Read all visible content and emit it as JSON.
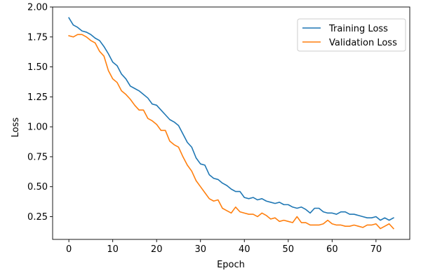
{
  "chart_data": {
    "type": "line",
    "xlabel": "Epoch",
    "ylabel": "Loss",
    "xlim": [
      -3.7,
      77.7
    ],
    "ylim": [
      0.06,
      2.0
    ],
    "xticks": [
      0,
      10,
      20,
      30,
      40,
      50,
      60,
      70
    ],
    "yticks": [
      0.25,
      0.5,
      0.75,
      1.0,
      1.25,
      1.5,
      1.75,
      2.0
    ],
    "xtick_labels": [
      "0",
      "10",
      "20",
      "30",
      "40",
      "50",
      "60",
      "70"
    ],
    "ytick_labels": [
      "0.25",
      "0.50",
      "0.75",
      "1.00",
      "1.25",
      "1.50",
      "1.75",
      "2.00"
    ],
    "grid": false,
    "legend": "top-right",
    "series": [
      {
        "name": "Training Loss",
        "color": "#1f77b4",
        "x": [
          0,
          1,
          2,
          3,
          4,
          5,
          6,
          7,
          8,
          9,
          10,
          11,
          12,
          13,
          14,
          15,
          16,
          17,
          18,
          19,
          20,
          21,
          22,
          23,
          24,
          25,
          26,
          27,
          28,
          29,
          30,
          31,
          32,
          33,
          34,
          35,
          36,
          37,
          38,
          39,
          40,
          41,
          42,
          43,
          44,
          45,
          46,
          47,
          48,
          49,
          50,
          51,
          52,
          53,
          54,
          55,
          56,
          57,
          58,
          59,
          60,
          61,
          62,
          63,
          64,
          65,
          66,
          67,
          68,
          69,
          70,
          71,
          72,
          73,
          74
        ],
        "values": [
          1.91,
          1.85,
          1.83,
          1.8,
          1.79,
          1.77,
          1.74,
          1.72,
          1.67,
          1.61,
          1.54,
          1.51,
          1.44,
          1.4,
          1.34,
          1.32,
          1.3,
          1.27,
          1.24,
          1.19,
          1.18,
          1.14,
          1.1,
          1.06,
          1.04,
          1.01,
          0.94,
          0.87,
          0.83,
          0.74,
          0.69,
          0.68,
          0.6,
          0.57,
          0.56,
          0.53,
          0.51,
          0.48,
          0.46,
          0.46,
          0.41,
          0.4,
          0.41,
          0.39,
          0.4,
          0.38,
          0.37,
          0.36,
          0.37,
          0.35,
          0.35,
          0.33,
          0.32,
          0.33,
          0.31,
          0.28,
          0.32,
          0.32,
          0.29,
          0.28,
          0.28,
          0.27,
          0.29,
          0.29,
          0.27,
          0.27,
          0.26,
          0.25,
          0.24,
          0.24,
          0.25,
          0.22,
          0.24,
          0.22,
          0.24
        ]
      },
      {
        "name": "Validation Loss",
        "color": "#ff7f0e",
        "x": [
          0,
          1,
          2,
          3,
          4,
          5,
          6,
          7,
          8,
          9,
          10,
          11,
          12,
          13,
          14,
          15,
          16,
          17,
          18,
          19,
          20,
          21,
          22,
          23,
          24,
          25,
          26,
          27,
          28,
          29,
          30,
          31,
          32,
          33,
          34,
          35,
          36,
          37,
          38,
          39,
          40,
          41,
          42,
          43,
          44,
          45,
          46,
          47,
          48,
          49,
          50,
          51,
          52,
          53,
          54,
          55,
          56,
          57,
          58,
          59,
          60,
          61,
          62,
          63,
          64,
          65,
          66,
          67,
          68,
          69,
          70,
          71,
          72,
          73,
          74
        ],
        "values": [
          1.76,
          1.75,
          1.77,
          1.77,
          1.75,
          1.72,
          1.7,
          1.63,
          1.59,
          1.47,
          1.4,
          1.37,
          1.3,
          1.27,
          1.23,
          1.18,
          1.14,
          1.14,
          1.07,
          1.05,
          1.02,
          0.97,
          0.97,
          0.88,
          0.85,
          0.83,
          0.75,
          0.68,
          0.63,
          0.55,
          0.5,
          0.45,
          0.4,
          0.38,
          0.39,
          0.32,
          0.3,
          0.28,
          0.33,
          0.29,
          0.28,
          0.27,
          0.27,
          0.25,
          0.28,
          0.26,
          0.23,
          0.24,
          0.21,
          0.22,
          0.21,
          0.2,
          0.25,
          0.2,
          0.2,
          0.18,
          0.18,
          0.18,
          0.19,
          0.22,
          0.19,
          0.18,
          0.18,
          0.17,
          0.17,
          0.18,
          0.17,
          0.16,
          0.18,
          0.18,
          0.19,
          0.15,
          0.17,
          0.19,
          0.15
        ]
      }
    ]
  }
}
